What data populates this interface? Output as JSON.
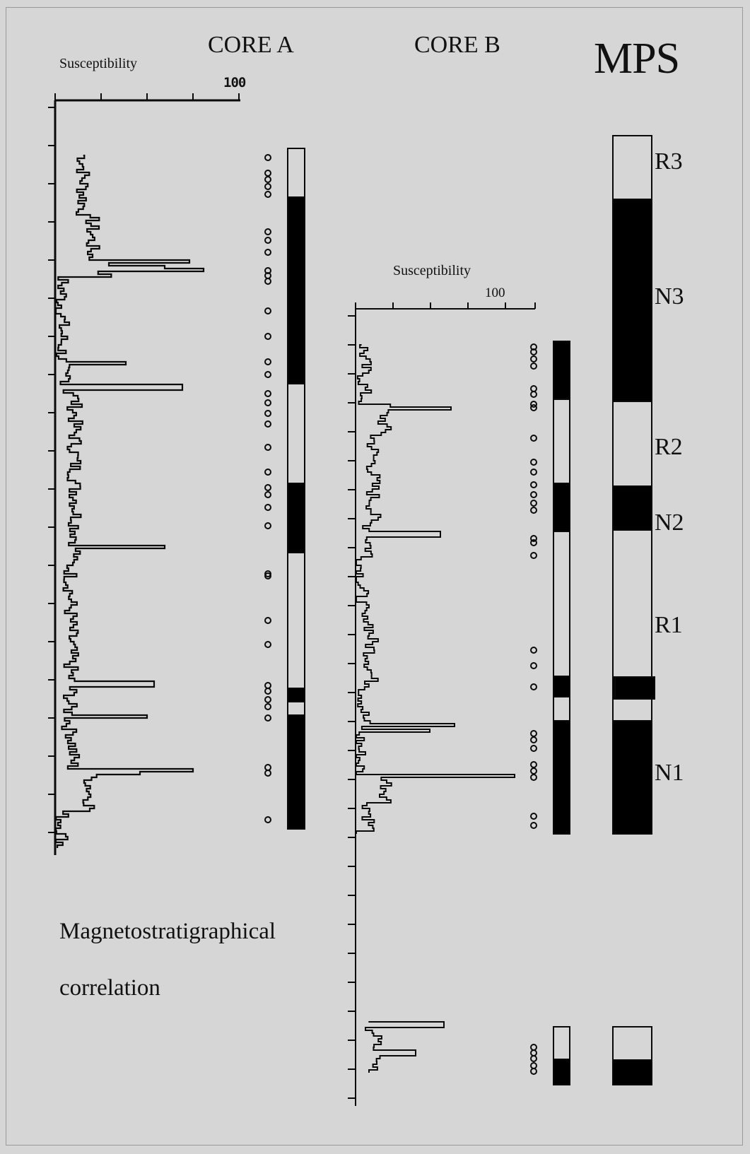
{
  "titles": {
    "core_a": "CORE A",
    "core_b": "CORE B",
    "mps": "MPS"
  },
  "axes": {
    "core_a": {
      "label": "Susceptibility",
      "max_label": "100"
    },
    "core_b": {
      "label": "Susceptibility",
      "max_label": "100"
    }
  },
  "chrons": [
    "R3",
    "N3",
    "R2",
    "N2",
    "R1",
    "N1"
  ],
  "caption": {
    "line1": "Magnetostratigraphical",
    "line2": "correlation"
  },
  "colors": {
    "background": "#d6d6d6",
    "ink": "#0a0a0a",
    "reversed": "#d6d6d6",
    "normal": "#000000"
  },
  "columns": {
    "core_a": [
      {
        "polarity": "reversed"
      },
      {
        "polarity": "normal"
      },
      {
        "polarity": "reversed"
      },
      {
        "polarity": "normal"
      },
      {
        "polarity": "reversed"
      },
      {
        "polarity": "normal"
      },
      {
        "polarity": "reversed"
      },
      {
        "polarity": "normal"
      }
    ],
    "core_b": [
      {
        "polarity": "normal"
      },
      {
        "polarity": "reversed"
      },
      {
        "polarity": "normal"
      },
      {
        "polarity": "reversed"
      },
      {
        "polarity": "normal"
      },
      {
        "polarity": "reversed"
      },
      {
        "polarity": "normal"
      },
      {
        "polarity": "reversed"
      },
      {
        "polarity": "normal"
      }
    ],
    "mps": [
      {
        "polarity": "reversed",
        "chron": "R3"
      },
      {
        "polarity": "normal",
        "chron": "N3"
      },
      {
        "polarity": "reversed",
        "chron": "R2"
      },
      {
        "polarity": "normal",
        "chron": "N2"
      },
      {
        "polarity": "reversed",
        "chron": "R1"
      },
      {
        "polarity": "normal"
      },
      {
        "polarity": "reversed"
      },
      {
        "polarity": "normal",
        "chron": "N1"
      },
      {
        "polarity": "reversed"
      },
      {
        "polarity": "normal"
      }
    ]
  }
}
